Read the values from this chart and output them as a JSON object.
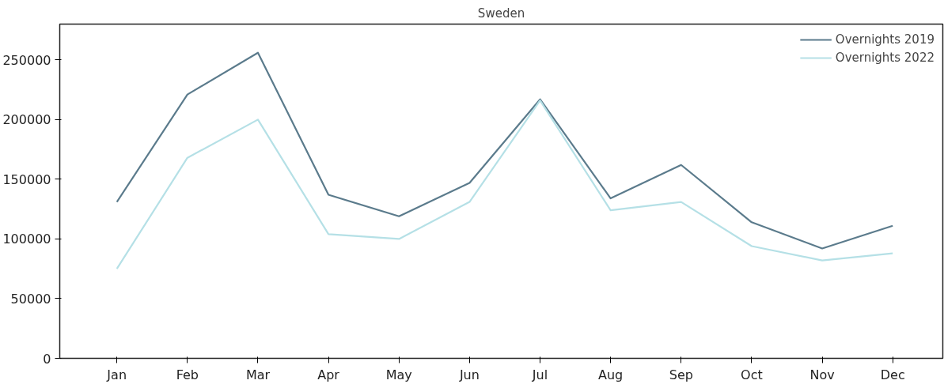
{
  "chart_data": {
    "type": "line",
    "title": "Sweden",
    "categories": [
      "Jan",
      "Feb",
      "Mar",
      "Apr",
      "May",
      "Jun",
      "Jul",
      "Aug",
      "Sep",
      "Oct",
      "Nov",
      "Dec"
    ],
    "ylim": [
      0,
      280000
    ],
    "yticks": [
      0,
      50000,
      100000,
      150000,
      200000,
      250000
    ],
    "grid": false,
    "legend": "top right",
    "marker": "none",
    "line_style": "solid",
    "series": [
      {
        "name": "Overnights 2019",
        "color": "#5b7b8c",
        "values": [
          131000,
          221000,
          256000,
          137000,
          119000,
          147000,
          217000,
          134000,
          162000,
          114000,
          92000,
          111000
        ]
      },
      {
        "name": "Overnights 2022",
        "color": "#b5e0e6",
        "values": [
          75000,
          168000,
          200000,
          104000,
          100000,
          131000,
          216000,
          124000,
          131000,
          94000,
          82000,
          88000
        ]
      }
    ]
  }
}
